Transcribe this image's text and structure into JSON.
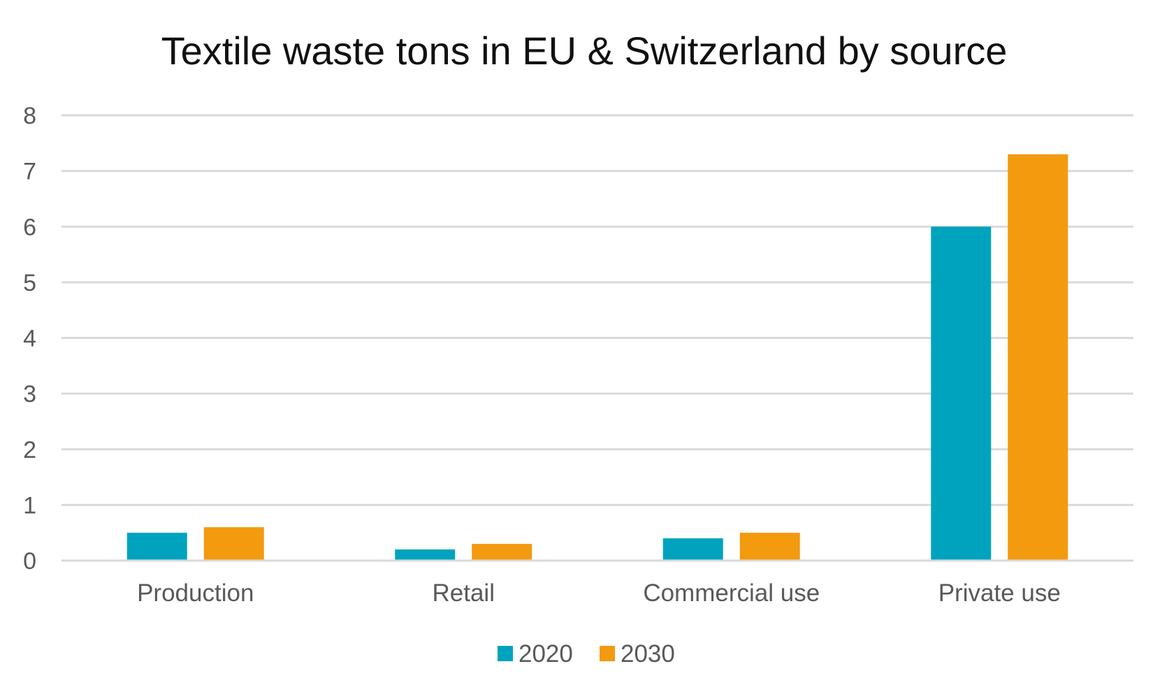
{
  "chart_data": {
    "type": "bar",
    "title": "Textile waste tons in EU & Switzerland by source",
    "xlabel": "",
    "ylabel": "",
    "categories": [
      "Production",
      "Retail",
      "Commercial use",
      "Private use"
    ],
    "series": [
      {
        "name": "2020",
        "values": [
          0.5,
          0.2,
          0.4,
          6.0
        ],
        "color": "#00a3be"
      },
      {
        "name": "2030",
        "values": [
          0.6,
          0.3,
          0.5,
          7.3
        ],
        "color": "#f39a0f"
      }
    ],
    "ylim": [
      0,
      8
    ],
    "yticks": [
      "0",
      "1",
      "2",
      "3",
      "4",
      "5",
      "6",
      "7",
      "8"
    ],
    "grid": true,
    "legend_position": "bottom"
  }
}
